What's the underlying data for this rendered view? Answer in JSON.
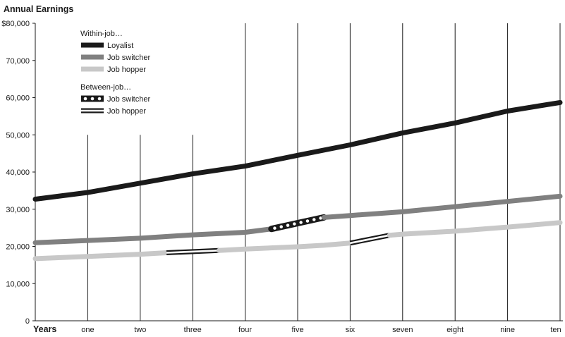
{
  "chart_data": {
    "type": "line",
    "title": "Annual Earnings",
    "xlabel": "Years",
    "ylabel": "",
    "ylim": [
      0,
      80000
    ],
    "yticks": [
      "0",
      "10,000",
      "20,000",
      "30,000",
      "40,000",
      "50,000",
      "60,000",
      "70,000",
      "$80,000"
    ],
    "x": [
      0,
      1,
      2,
      3,
      4,
      5,
      6,
      7,
      8,
      9,
      10
    ],
    "xtick_labels": [
      "one",
      "two",
      "three",
      "four",
      "five",
      "six",
      "seven",
      "eight",
      "nine",
      "ten"
    ],
    "legend_groups": [
      {
        "heading": "Within-job…",
        "entries": [
          {
            "label": "Loyalist",
            "style": "thick-black"
          },
          {
            "label": "Job switcher",
            "style": "thick-darkgray"
          },
          {
            "label": "Job hopper",
            "style": "thick-lightgray"
          }
        ]
      },
      {
        "heading": "Between-job…",
        "entries": [
          {
            "label": "Job switcher",
            "style": "dotted-black"
          },
          {
            "label": "Job hopper",
            "style": "double-line"
          }
        ]
      }
    ],
    "series": [
      {
        "name": "Loyalist",
        "color": "#1a1a1a",
        "points": [
          [
            0,
            32700
          ],
          [
            1,
            34500
          ],
          [
            2,
            37000
          ],
          [
            3,
            39500
          ],
          [
            4,
            41600
          ],
          [
            5,
            44500
          ],
          [
            6,
            47300
          ],
          [
            7,
            50500
          ],
          [
            8,
            53200
          ],
          [
            9,
            56400
          ],
          [
            10,
            58700
          ]
        ]
      },
      {
        "name": "Job switcher",
        "color": "#808080",
        "points": [
          [
            0,
            21000
          ],
          [
            1,
            21600
          ],
          [
            2,
            22200
          ],
          [
            3,
            23100
          ],
          [
            4,
            23800
          ],
          [
            4.5,
            24700
          ]
        ]
      },
      {
        "name": "Between-job job switcher",
        "color": "#1a1a1a",
        "points": [
          [
            4.5,
            24700
          ],
          [
            5.5,
            27800
          ]
        ]
      },
      {
        "name": "Job switcher",
        "color": "#808080",
        "points": [
          [
            5.5,
            27800
          ],
          [
            6,
            28300
          ],
          [
            7,
            29300
          ],
          [
            8,
            30700
          ],
          [
            9,
            32100
          ],
          [
            10,
            33500
          ]
        ]
      },
      {
        "name": "Job hopper",
        "color": "#c8c8c8",
        "points": [
          [
            0,
            16700
          ],
          [
            1,
            17300
          ],
          [
            2,
            17900
          ],
          [
            2.5,
            18300
          ]
        ]
      },
      {
        "name": "Between-job job hopper",
        "color": "#1a1a1a",
        "points": [
          [
            2.5,
            18300
          ],
          [
            3.5,
            18900
          ]
        ]
      },
      {
        "name": "Job hopper",
        "color": "#c8c8c8",
        "points": [
          [
            3.5,
            18900
          ],
          [
            4,
            19300
          ],
          [
            5,
            19900
          ],
          [
            5.5,
            20300
          ],
          [
            6,
            20900
          ]
        ]
      },
      {
        "name": "Between-job job hopper",
        "color": "#1a1a1a",
        "points": [
          [
            6,
            20900
          ],
          [
            6.75,
            23000
          ]
        ]
      },
      {
        "name": "Job hopper",
        "color": "#c8c8c8",
        "points": [
          [
            6.75,
            23000
          ],
          [
            7,
            23300
          ],
          [
            8,
            24100
          ],
          [
            9,
            25200
          ],
          [
            10,
            26400
          ]
        ]
      }
    ]
  }
}
